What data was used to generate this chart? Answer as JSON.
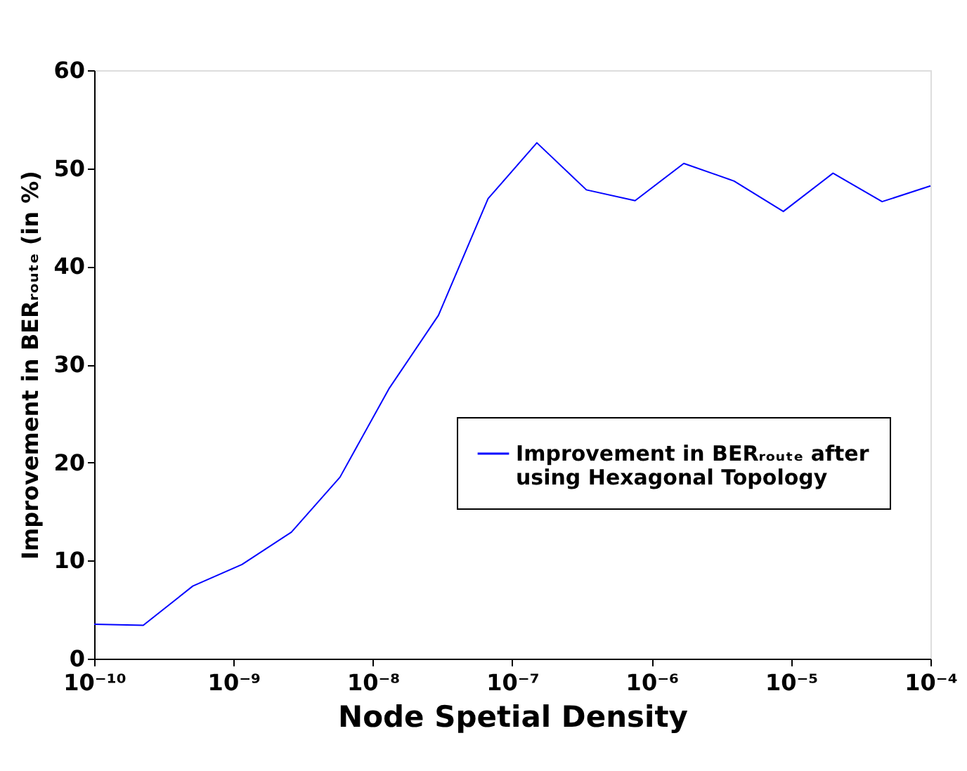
{
  "chart_data": {
    "type": "line",
    "xlabel": "Node Spetial Density",
    "ylabel": "Improvement in BERᵣₒᵤₜₑ (in %)",
    "x": [
      1e-10,
      2.25e-10,
      5.1e-10,
      1.15e-09,
      2.6e-09,
      5.8e-09,
      1.3e-08,
      2.95e-08,
      6.7e-08,
      1.5e-07,
      3.4e-07,
      7.6e-07,
      1.7e-06,
      3.9e-06,
      8.8e-06,
      2e-05,
      4.5e-05,
      0.0001
    ],
    "series": [
      {
        "name": "Improvement in BERᵣₒᵤₜₑ after\nusing Hexagonal Topology",
        "color": "#0000ff",
        "values": [
          3.5,
          3.4,
          7.4,
          9.6,
          12.9,
          18.5,
          27.5,
          35.0,
          46.9,
          52.6,
          47.8,
          46.7,
          50.5,
          48.7,
          45.6,
          49.5,
          46.6,
          48.2
        ]
      }
    ],
    "log": "x",
    "xlim": [
      1e-10,
      0.0001
    ],
    "xticks": [
      {
        "value": 1e-10,
        "label": "10⁻¹⁰"
      },
      {
        "value": 1e-09,
        "label": "10⁻⁹"
      },
      {
        "value": 1e-08,
        "label": "10⁻⁸"
      },
      {
        "value": 1e-07,
        "label": "10⁻⁷"
      },
      {
        "value": 1e-06,
        "label": "10⁻⁶"
      },
      {
        "value": 1e-05,
        "label": "10⁻⁵"
      },
      {
        "value": 0.0001,
        "label": "10⁻⁴"
      }
    ],
    "ylim": [
      0,
      60
    ],
    "yticks": [
      0,
      10,
      20,
      30,
      40,
      50,
      60
    ],
    "grid": false,
    "legend": "right",
    "marker": "none",
    "line_style": "solid"
  }
}
